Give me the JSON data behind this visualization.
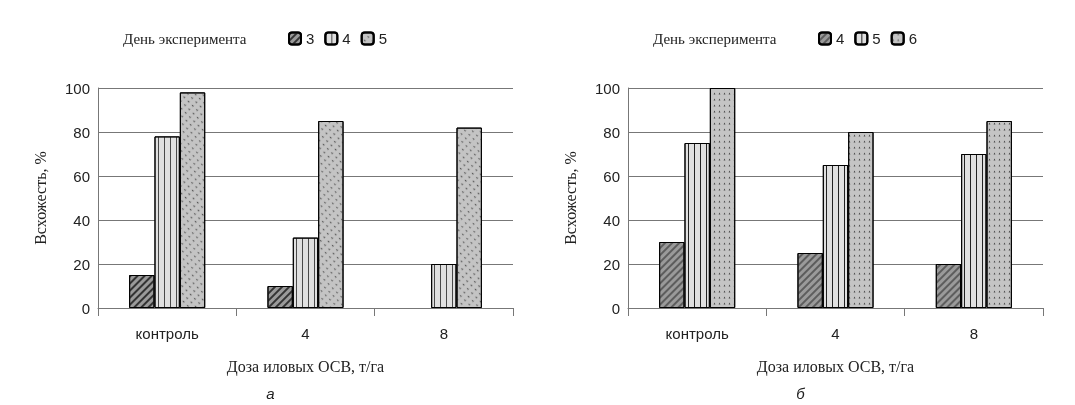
{
  "chart_data": [
    {
      "type": "bar",
      "categories": [
        "контроль",
        "4",
        "8"
      ],
      "xlabel": "Доза иловых ОСВ, т/га",
      "ylabel": "Всхожесть, %",
      "legend_title": "День эксперимента",
      "legend": "top",
      "ylim": [
        0,
        100
      ],
      "yticks": [
        0,
        20,
        40,
        60,
        80,
        100
      ],
      "grid": "y",
      "annotations": [
        "а"
      ],
      "series": [
        {
          "name": "3",
          "color": "#9a9a9a",
          "values": [
            15,
            10,
            null
          ]
        },
        {
          "name": "4",
          "color": "#e0e0e0",
          "values": [
            78,
            32,
            20
          ]
        },
        {
          "name": "5",
          "color": "#c4c4c4",
          "values": [
            98,
            85,
            82
          ]
        }
      ]
    },
    {
      "type": "bar",
      "categories": [
        "контроль",
        "4",
        "8"
      ],
      "xlabel": "Доза иловых ОСВ, т/га",
      "ylabel": "Всхожесть, %",
      "legend_title": "День эксперимента",
      "legend": "top",
      "ylim": [
        0,
        100
      ],
      "yticks": [
        0,
        20,
        40,
        60,
        80,
        100
      ],
      "grid": "y",
      "annotations": [
        "б"
      ],
      "series": [
        {
          "name": "4",
          "color": "#9a9a9a",
          "values": [
            30,
            25,
            20
          ]
        },
        {
          "name": "5",
          "color": "#e0e0e0",
          "values": [
            75,
            65,
            70
          ]
        },
        {
          "name": "6",
          "color": "#c4c4c4",
          "values": [
            100,
            80,
            85
          ]
        }
      ]
    }
  ]
}
